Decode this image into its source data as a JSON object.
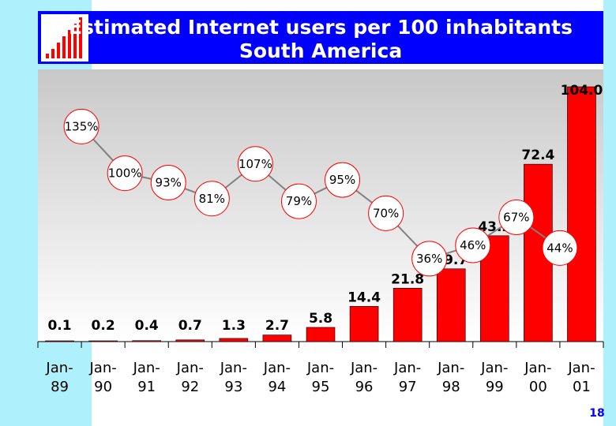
{
  "colors": {
    "background_band": "#aef0fb",
    "title_box": "#0000ff",
    "bar": "#ff0000",
    "line": "#808080",
    "page_number": "#0000ff"
  },
  "logo": {
    "icon": "bar-chart-logo-icon"
  },
  "page_number": "18",
  "chart_data": {
    "type": "bar",
    "title": "Estimated Internet users per 100 inhabitants",
    "subtitle": "South America",
    "categories": [
      [
        "Jan-",
        "89"
      ],
      [
        "Jan-",
        "90"
      ],
      [
        "Jan-",
        "91"
      ],
      [
        "Jan-",
        "92"
      ],
      [
        "Jan-",
        "93"
      ],
      [
        "Jan-",
        "94"
      ],
      [
        "Jan-",
        "95"
      ],
      [
        "Jan-",
        "96"
      ],
      [
        "Jan-",
        "97"
      ],
      [
        "Jan-",
        "98"
      ],
      [
        "Jan-",
        "99"
      ],
      [
        "Jan-",
        "00"
      ],
      [
        "Jan-",
        "01"
      ]
    ],
    "values": [
      0.1,
      0.2,
      0.4,
      0.7,
      1.3,
      2.7,
      5.8,
      14.4,
      21.8,
      29.7,
      43.2,
      72.4,
      104.0
    ],
    "value_labels": [
      "0.1",
      "0.2",
      "0.4",
      "0.7",
      "1.3",
      "2.7",
      "5.8",
      "14.4",
      "21.8",
      "29.7",
      "43.2",
      "72.4",
      "104.0"
    ],
    "ylim": [
      0,
      104
    ],
    "growth_line": {
      "type": "line",
      "labels": [
        "135%",
        "100%",
        "93%",
        "81%",
        "107%",
        "79%",
        "95%",
        "70%",
        "36%",
        "46%",
        "67%",
        "44%"
      ],
      "values": [
        135,
        100,
        93,
        81,
        107,
        79,
        95,
        70,
        36,
        46,
        67,
        44
      ],
      "ylim": [
        20,
        150
      ]
    },
    "grid": false
  }
}
